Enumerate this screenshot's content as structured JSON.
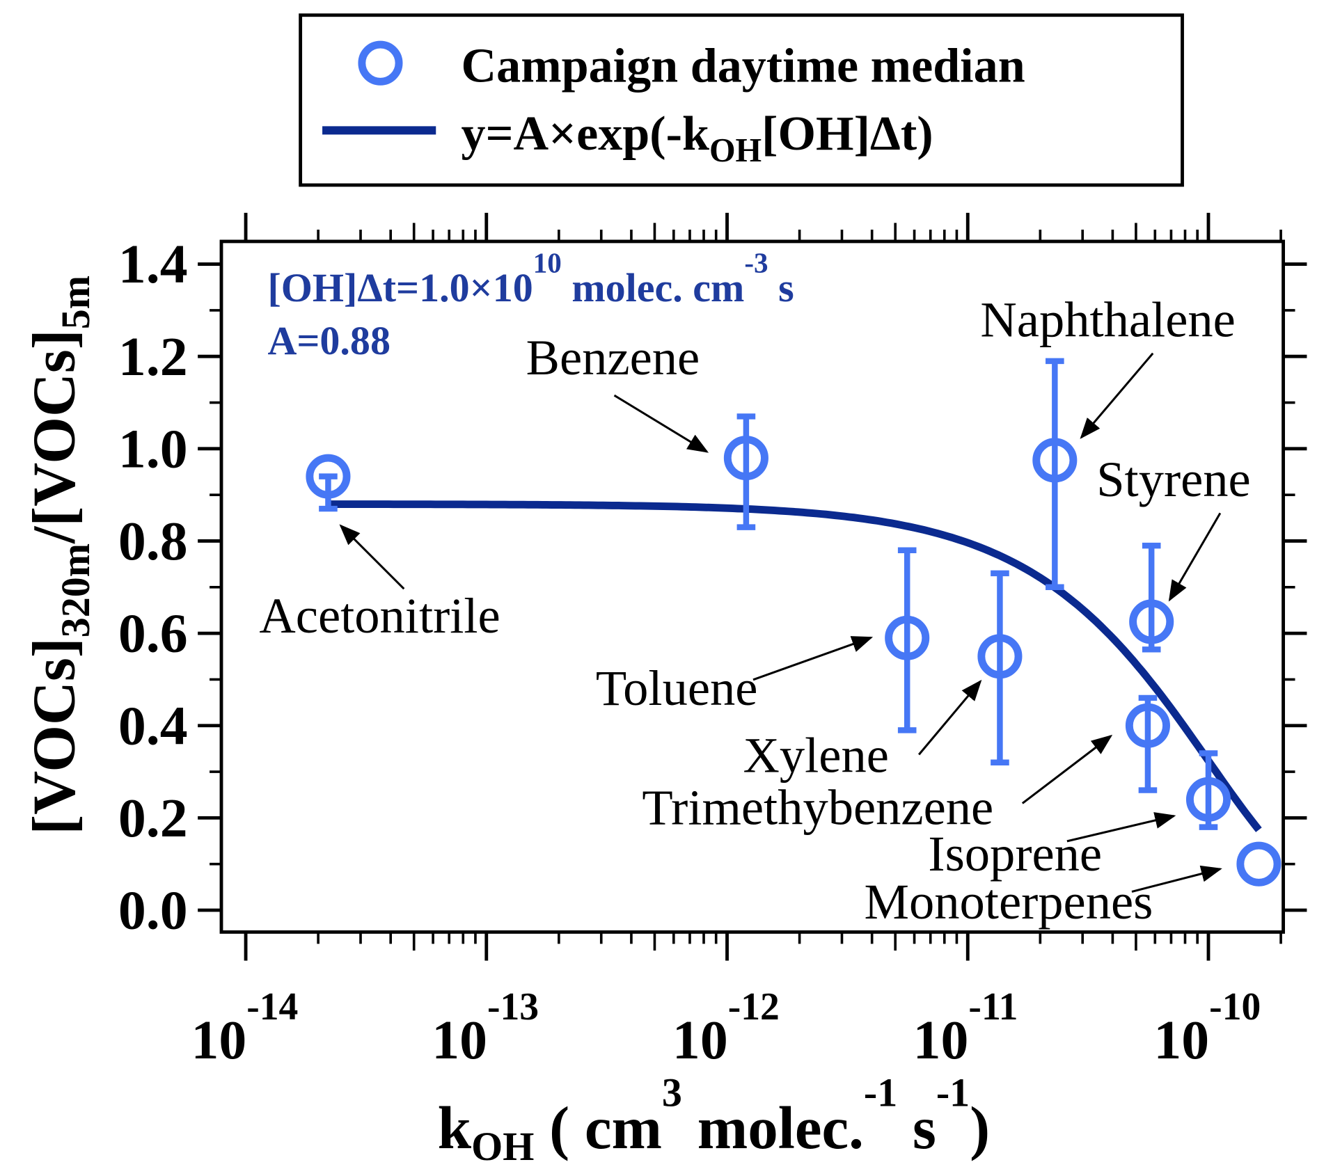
{
  "colors": {
    "points": "#4677f5",
    "fit": "#0b2a8f",
    "annotation": "#1f3c9e",
    "axis": "#000000"
  },
  "legend": {
    "marker_label": "Campaign daytime median",
    "line_label_prefix": "y=A×exp(-k",
    "line_label_sub": "OH",
    "line_label_suffix": "[OH]Δt)"
  },
  "annotation": {
    "line1_prefix": "[OH]Δt=1.0×10",
    "line1_exp": "10",
    "line1_mid": " molec. cm",
    "line1_exp2": "-3",
    "line1_suffix": " s",
    "line2": "A=0.88"
  },
  "chart_data": {
    "type": "scatter",
    "x_scale": "log",
    "xlim": [
      1e-14,
      2e-10
    ],
    "ylim": [
      0.0,
      1.4
    ],
    "xlabel": {
      "base": "k",
      "sub": "OH",
      "text": " ( cm",
      "sup1": "3",
      "text2": " molec.",
      "sup2": "-1",
      "text3": " s",
      "sup3": "-1",
      "text4": ")"
    },
    "ylabel": {
      "part1": "[VOCs]",
      "sub1": "320m",
      "part2": "/[VOCs]",
      "sub2": "5m"
    },
    "xticks": [
      {
        "base": "10",
        "exp": "-14",
        "value": 1e-14
      },
      {
        "base": "10",
        "exp": "-13",
        "value": 1e-13
      },
      {
        "base": "10",
        "exp": "-12",
        "value": 1e-12
      },
      {
        "base": "10",
        "exp": "-11",
        "value": 1e-11
      },
      {
        "base": "10",
        "exp": "-10",
        "value": 1e-10
      }
    ],
    "yticks": [
      "0.0",
      "0.2",
      "0.4",
      "0.6",
      "0.8",
      "1.0",
      "1.2",
      "1.4"
    ],
    "fit": {
      "A": 0.88,
      "OH_dt": 10000000000.0,
      "x_range": [
        2.2e-14,
        1.62e-10
      ]
    },
    "points": [
      {
        "name": "Acetonitrile",
        "x": 2.2e-14,
        "y": 0.94,
        "err_low": 0.87,
        "err_high": 0.94
      },
      {
        "name": "Benzene",
        "x": 1.2e-12,
        "y": 0.98,
        "err_low": 0.83,
        "err_high": 1.07
      },
      {
        "name": "Toluene",
        "x": 5.6e-12,
        "y": 0.59,
        "err_low": 0.39,
        "err_high": 0.78
      },
      {
        "name": "Xylene",
        "x": 1.36e-11,
        "y": 0.55,
        "err_low": 0.32,
        "err_high": 0.73
      },
      {
        "name": "Naphthalene",
        "x": 2.3e-11,
        "y": 0.975,
        "err_low": 0.7,
        "err_high": 1.19
      },
      {
        "name": "Styrene",
        "x": 5.8e-11,
        "y": 0.625,
        "err_low": 0.565,
        "err_high": 0.79
      },
      {
        "name": "Trimethybenzene",
        "x": 5.6e-11,
        "y": 0.4,
        "err_low": 0.26,
        "err_high": 0.46
      },
      {
        "name": "Isoprene",
        "x": 1e-10,
        "y": 0.24,
        "err_low": 0.18,
        "err_high": 0.34
      },
      {
        "name": "Monoterpenes",
        "x": 1.62e-10,
        "y": 0.1,
        "err_low": 0.1,
        "err_high": 0.1
      }
    ]
  }
}
